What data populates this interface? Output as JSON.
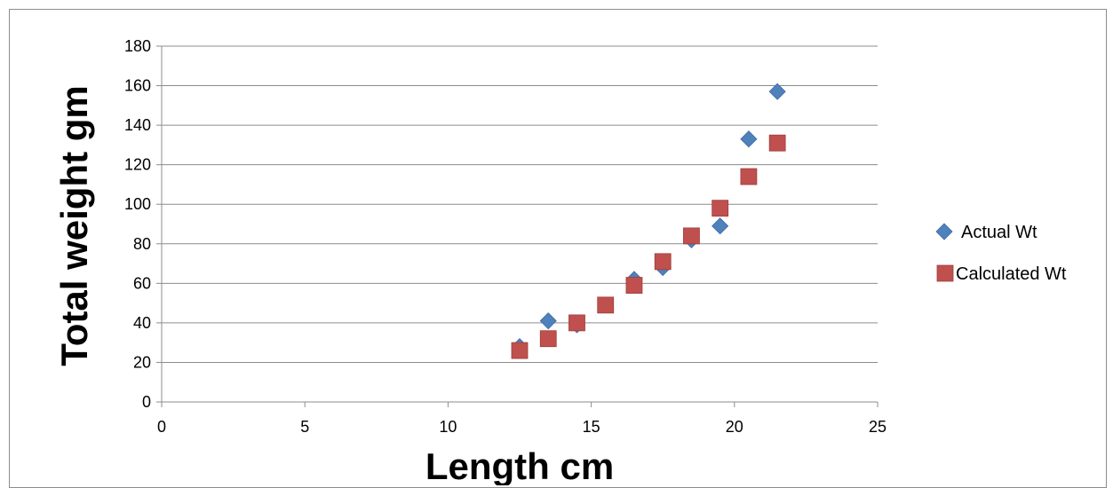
{
  "chart_data": {
    "type": "scatter",
    "title": "",
    "xlabel": "Length cm",
    "ylabel": "Total weight gm",
    "xlim": [
      0,
      25
    ],
    "ylim": [
      0,
      180
    ],
    "xticks": [
      0,
      5,
      10,
      15,
      20,
      25
    ],
    "yticks": [
      0,
      20,
      40,
      60,
      80,
      100,
      120,
      140,
      160,
      180
    ],
    "grid": "horizontal",
    "legend": "right",
    "series": [
      {
        "name": "Actual Wt",
        "marker": "diamond",
        "color": "#4F81BD",
        "points": [
          [
            12.5,
            28
          ],
          [
            13.5,
            41
          ],
          [
            14.5,
            39
          ],
          [
            15.5,
            49
          ],
          [
            16.5,
            62
          ],
          [
            17.5,
            68
          ],
          [
            18.5,
            82
          ],
          [
            19.5,
            89
          ],
          [
            20.5,
            133
          ],
          [
            21.5,
            157
          ]
        ]
      },
      {
        "name": "Calculated Wt",
        "marker": "square",
        "color": "#C0504D",
        "points": [
          [
            12.5,
            26
          ],
          [
            13.5,
            32
          ],
          [
            14.5,
            40
          ],
          [
            15.5,
            49
          ],
          [
            16.5,
            59
          ],
          [
            17.5,
            71
          ],
          [
            18.5,
            84
          ],
          [
            19.5,
            98
          ],
          [
            20.5,
            114
          ],
          [
            21.5,
            131
          ]
        ]
      }
    ]
  }
}
